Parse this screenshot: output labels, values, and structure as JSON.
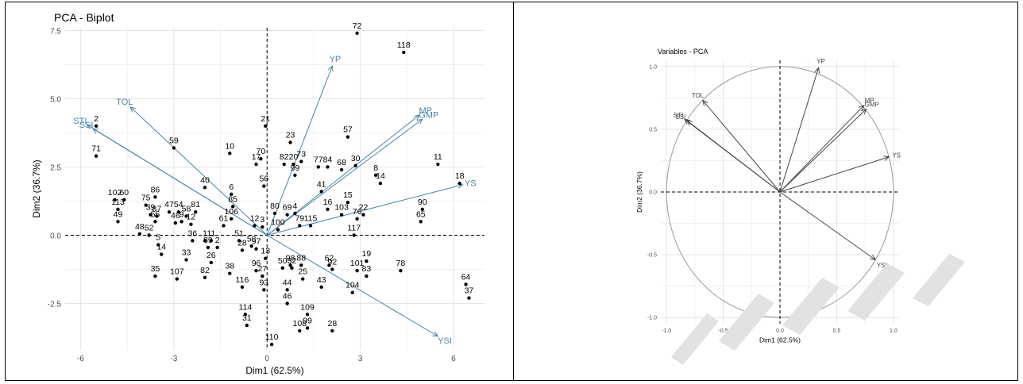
{
  "chart_data": [
    {
      "type": "scatter",
      "title": "PCA - Biplot",
      "xlabel": "Dim1 (62.5%)",
      "ylabel": "Dim2 (36.7%)",
      "xlim": [
        -6.5,
        7.0
      ],
      "ylim": [
        -4.2,
        7.6
      ],
      "xticks": [
        -6,
        -3,
        0,
        3,
        6
      ],
      "xtick_labels": [
        "-6",
        "-3",
        "0",
        "3",
        "6"
      ],
      "yticks": [
        -2.5,
        0.0,
        2.5,
        5.0,
        7.5
      ],
      "ytick_labels": [
        "-2.5",
        "0.0",
        "2.5",
        "5.0",
        "7.5"
      ],
      "grid": true,
      "reference_lines": {
        "x": 0,
        "y": 0,
        "style": "dashed"
      },
      "point_color": "#000000",
      "arrow_color": "#4a86a8",
      "points": [
        {
          "label": "72",
          "x": 2.9,
          "y": 7.4
        },
        {
          "label": "118",
          "x": 4.4,
          "y": 6.7
        },
        {
          "label": "2",
          "x": -5.5,
          "y": 4.0
        },
        {
          "label": "21",
          "x": -0.05,
          "y": 4.0
        },
        {
          "label": "57",
          "x": 2.6,
          "y": 3.6
        },
        {
          "label": "23",
          "x": 0.75,
          "y": 3.4
        },
        {
          "label": "59",
          "x": -3.0,
          "y": 3.2
        },
        {
          "label": "70",
          "x": -0.2,
          "y": 2.8
        },
        {
          "label": "10",
          "x": -1.2,
          "y": 3.0
        },
        {
          "label": "73",
          "x": 1.1,
          "y": 2.7
        },
        {
          "label": "82",
          "x": 0.55,
          "y": 2.6
        },
        {
          "label": "20",
          "x": 0.85,
          "y": 2.6
        },
        {
          "label": "17",
          "x": -0.35,
          "y": 2.6
        },
        {
          "label": "71",
          "x": -5.5,
          "y": 2.9
        },
        {
          "label": "77",
          "x": 1.65,
          "y": 2.5
        },
        {
          "label": "84",
          "x": 1.95,
          "y": 2.5
        },
        {
          "label": "30",
          "x": 2.85,
          "y": 2.55
        },
        {
          "label": "11",
          "x": 5.5,
          "y": 2.6
        },
        {
          "label": "68",
          "x": 2.4,
          "y": 2.4
        },
        {
          "label": "99",
          "x": 0.9,
          "y": 2.2
        },
        {
          "label": "8",
          "x": 3.5,
          "y": 2.2
        },
        {
          "label": "14",
          "x": 3.65,
          "y": 1.9
        },
        {
          "label": "18",
          "x": 6.2,
          "y": 1.9
        },
        {
          "label": "56",
          "x": -0.1,
          "y": 1.8
        },
        {
          "label": "40",
          "x": -2.0,
          "y": 1.75
        },
        {
          "label": "6",
          "x": -1.15,
          "y": 1.5
        },
        {
          "label": "41",
          "x": 1.75,
          "y": 1.6
        },
        {
          "label": "86",
          "x": -3.6,
          "y": 1.4
        },
        {
          "label": "102",
          "x": -4.9,
          "y": 1.3
        },
        {
          "label": "60",
          "x": -4.6,
          "y": 1.3
        },
        {
          "label": "85",
          "x": -1.1,
          "y": 1.05
        },
        {
          "label": "75",
          "x": -3.9,
          "y": 1.1
        },
        {
          "label": "15",
          "x": 2.6,
          "y": 1.2
        },
        {
          "label": "16",
          "x": 1.95,
          "y": 0.95
        },
        {
          "label": "113",
          "x": -4.8,
          "y": 0.95
        },
        {
          "label": "90",
          "x": 5.0,
          "y": 0.95
        },
        {
          "label": "47",
          "x": -3.15,
          "y": 0.85
        },
        {
          "label": "54",
          "x": -2.85,
          "y": 0.85
        },
        {
          "label": "81",
          "x": -2.3,
          "y": 0.85
        },
        {
          "label": "39",
          "x": -3.75,
          "y": 0.75
        },
        {
          "label": "87",
          "x": -3.55,
          "y": 0.7
        },
        {
          "label": "58",
          "x": -2.6,
          "y": 0.7
        },
        {
          "label": "69",
          "x": 0.65,
          "y": 0.75
        },
        {
          "label": "4",
          "x": 0.9,
          "y": 0.8
        },
        {
          "label": "103",
          "x": 2.4,
          "y": 0.75
        },
        {
          "label": "22",
          "x": 3.1,
          "y": 0.75
        },
        {
          "label": "76",
          "x": 2.9,
          "y": 0.6
        },
        {
          "label": "106",
          "x": -1.15,
          "y": 0.6
        },
        {
          "label": "65",
          "x": 4.95,
          "y": 0.5
        },
        {
          "label": "55",
          "x": -3.6,
          "y": 0.5
        },
        {
          "label": "49",
          "x": -4.8,
          "y": 0.5
        },
        {
          "label": "46",
          "x": -2.95,
          "y": 0.45
        },
        {
          "label": "9",
          "x": -2.75,
          "y": 0.5
        },
        {
          "label": "12",
          "x": -2.45,
          "y": 0.4
        },
        {
          "label": "80",
          "x": 0.25,
          "y": 0.8
        },
        {
          "label": "61",
          "x": -1.4,
          "y": 0.35
        },
        {
          "label": "12",
          "x": -0.4,
          "y": 0.35
        },
        {
          "label": "3",
          "x": -0.15,
          "y": 0.3
        },
        {
          "label": "100",
          "x": 0.35,
          "y": 0.2
        },
        {
          "label": "79",
          "x": 1.05,
          "y": 0.35
        },
        {
          "label": "115",
          "x": 1.4,
          "y": 0.35
        },
        {
          "label": "117",
          "x": 2.8,
          "y": 0.0
        },
        {
          "label": "48",
          "x": -4.1,
          "y": 0.05
        },
        {
          "label": "52",
          "x": -3.8,
          "y": 0.0
        },
        {
          "label": "36",
          "x": -2.4,
          "y": -0.2
        },
        {
          "label": "1",
          "x": -2.0,
          "y": -0.2
        },
        {
          "label": "11",
          "x": -1.8,
          "y": -0.2
        },
        {
          "label": "51",
          "x": -0.9,
          "y": -0.2
        },
        {
          "label": "5",
          "x": -3.5,
          "y": -0.35
        },
        {
          "label": "89",
          "x": -1.9,
          "y": -0.45
        },
        {
          "label": "2",
          "x": -1.6,
          "y": -0.45
        },
        {
          "label": "58",
          "x": -0.5,
          "y": -0.4
        },
        {
          "label": "97",
          "x": -0.35,
          "y": -0.5
        },
        {
          "label": "28",
          "x": -0.8,
          "y": -0.55
        },
        {
          "label": "14",
          "x": -3.4,
          "y": -0.7
        },
        {
          "label": "33",
          "x": -2.6,
          "y": -0.9
        },
        {
          "label": "26",
          "x": -1.8,
          "y": -1.0
        },
        {
          "label": "13",
          "x": -0.05,
          "y": -0.85
        },
        {
          "label": "19",
          "x": 3.2,
          "y": -0.95
        },
        {
          "label": "98",
          "x": 0.75,
          "y": -1.1
        },
        {
          "label": "88",
          "x": 1.1,
          "y": -1.1
        },
        {
          "label": "50",
          "x": 0.5,
          "y": -1.2
        },
        {
          "label": "32",
          "x": 0.8,
          "y": -1.2
        },
        {
          "label": "62",
          "x": 2.0,
          "y": -1.1
        },
        {
          "label": "92",
          "x": 2.1,
          "y": -1.25
        },
        {
          "label": "101",
          "x": 2.9,
          "y": -1.3
        },
        {
          "label": "78",
          "x": 4.3,
          "y": -1.3
        },
        {
          "label": "96",
          "x": -0.35,
          "y": -1.3
        },
        {
          "label": "38",
          "x": -1.2,
          "y": -1.4
        },
        {
          "label": "35",
          "x": -3.6,
          "y": -1.5
        },
        {
          "label": "107",
          "x": -2.9,
          "y": -1.6
        },
        {
          "label": "82",
          "x": -2.0,
          "y": -1.55
        },
        {
          "label": "83",
          "x": 3.2,
          "y": -1.5
        },
        {
          "label": "27",
          "x": -0.15,
          "y": -1.5
        },
        {
          "label": "25",
          "x": 1.15,
          "y": -1.6
        },
        {
          "label": "116",
          "x": -0.8,
          "y": -1.9
        },
        {
          "label": "93",
          "x": -0.1,
          "y": -2.0
        },
        {
          "label": "44",
          "x": 0.65,
          "y": -2.0
        },
        {
          "label": "43",
          "x": 1.75,
          "y": -1.9
        },
        {
          "label": "104",
          "x": 2.75,
          "y": -2.1
        },
        {
          "label": "64",
          "x": 6.4,
          "y": -1.8
        },
        {
          "label": "37",
          "x": 6.5,
          "y": -2.3
        },
        {
          "label": "46",
          "x": 0.65,
          "y": -2.5
        },
        {
          "label": "114",
          "x": -0.7,
          "y": -2.9
        },
        {
          "label": "109",
          "x": 1.3,
          "y": -2.9
        },
        {
          "label": "31",
          "x": -0.65,
          "y": -3.3
        },
        {
          "label": "99",
          "x": 1.3,
          "y": -3.4
        },
        {
          "label": "108",
          "x": 1.05,
          "y": -3.5
        },
        {
          "label": "28",
          "x": 2.1,
          "y": -3.5
        },
        {
          "label": "110",
          "x": 0.15,
          "y": -4.0
        }
      ],
      "arrows": [
        {
          "label": "YP",
          "x": 2.1,
          "y": 6.2
        },
        {
          "label": "TOL",
          "x": -4.4,
          "y": 4.7
        },
        {
          "label": "MP",
          "x": 4.9,
          "y": 4.4
        },
        {
          "label": "GMP",
          "x": 5.0,
          "y": 4.25
        },
        {
          "label": "STI",
          "x": -5.8,
          "y": 4.05
        },
        {
          "label": "SSI",
          "x": -5.6,
          "y": 3.9
        },
        {
          "label": "YS",
          "x": 6.3,
          "y": 1.85
        },
        {
          "label": "YSI",
          "x": 5.5,
          "y": -3.7
        }
      ]
    },
    {
      "type": "scatter",
      "title": "Variables - PCA",
      "xlabel": "Dim1 (62.5%)",
      "ylabel": "Dim2 (36.7%)",
      "xlim": [
        -1.05,
        1.05
      ],
      "ylim": [
        -1.05,
        1.05
      ],
      "xticks": [
        -1.0,
        -0.5,
        0.0,
        0.5,
        1.0
      ],
      "xtick_labels": [
        "-1.0",
        "-0.5",
        "0.0",
        "0.5",
        "1.0"
      ],
      "yticks": [
        -1.0,
        -0.5,
        0.0,
        0.5,
        1.0
      ],
      "ytick_labels": [
        "-1.0",
        "-0.5",
        "0.0",
        "0.5",
        "1.0"
      ],
      "grid": true,
      "unit_circle": true,
      "reference_lines": {
        "x": 0,
        "y": 0,
        "style": "dashed"
      },
      "arrow_color": "#444444",
      "arrows": [
        {
          "label": "YP",
          "x": 0.34,
          "y": 0.99
        },
        {
          "label": "TOL",
          "x": -0.68,
          "y": 0.73
        },
        {
          "label": "MP",
          "x": 0.74,
          "y": 0.69
        },
        {
          "label": "GMP",
          "x": 0.76,
          "y": 0.66
        },
        {
          "label": "STI",
          "x": -0.84,
          "y": 0.58
        },
        {
          "label": "SSI",
          "x": -0.82,
          "y": 0.57
        },
        {
          "label": "YS",
          "x": 0.96,
          "y": 0.28
        },
        {
          "label": "YSI",
          "x": 0.84,
          "y": -0.54
        }
      ]
    }
  ]
}
